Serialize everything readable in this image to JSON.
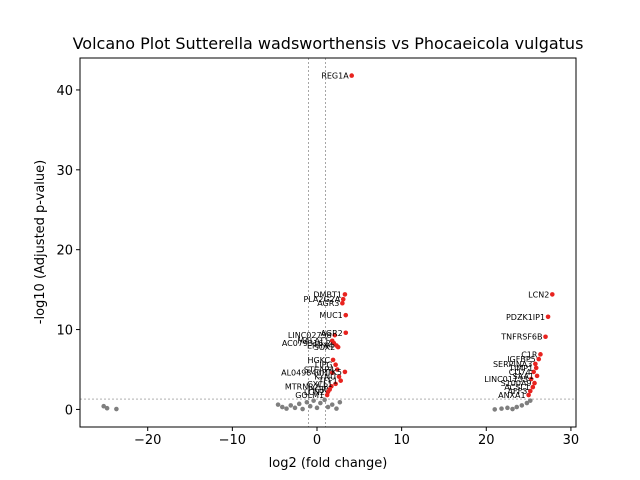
{
  "chart_data": {
    "type": "scatter",
    "title": "Volcano Plot Sutterella wadsworthensis vs Phocaeicola vulgatus",
    "xlabel": "log2 (fold change)",
    "ylabel": "-log10 (Adjusted p-value)",
    "xlim": [
      -28,
      30.6
    ],
    "ylim": [
      -2.2,
      44
    ],
    "xticks": [
      -20,
      -10,
      0,
      10,
      20,
      30
    ],
    "yticks": [
      0,
      10,
      20,
      30,
      40
    ],
    "xtick_labels": [
      "−20",
      "−10",
      "0",
      "10",
      "20",
      "30"
    ],
    "ytick_labels": [
      "0",
      "10",
      "20",
      "30",
      "40"
    ],
    "grid": false,
    "threshold_lines": {
      "fold_change": [
        -1,
        1
      ],
      "adjusted_p": 1.3
    },
    "colors": {
      "significant": "#e8231f",
      "not_significant": "#7f7f7f",
      "threshold": "#808080"
    },
    "series": [
      {
        "color": "#e8231f",
        "points": [
          {
            "x": 4.1,
            "y": 41.8,
            "label": "REG1A"
          },
          {
            "x": 3.3,
            "y": 14.4,
            "label": "DMBT1"
          },
          {
            "x": 3.1,
            "y": 13.8,
            "label": "PLA2G2A"
          },
          {
            "x": 3.0,
            "y": 13.3,
            "label": "AGR3"
          },
          {
            "x": 3.4,
            "y": 11.8,
            "label": "MUC1"
          },
          {
            "x": 3.4,
            "y": 9.6,
            "label": "AGR2"
          },
          {
            "x": 2.1,
            "y": 9.3,
            "label": "LINC02798"
          },
          {
            "x": 1.8,
            "y": 8.6,
            "label": "MALAT1"
          },
          {
            "x": 2.0,
            "y": 8.3,
            "label": "AC079316.2"
          },
          {
            "x": 2.3,
            "y": 8.0,
            "label": "EPHX4"
          },
          {
            "x": 2.5,
            "y": 7.8,
            "label": "SOX2"
          },
          {
            "x": 1.9,
            "y": 6.2,
            "label": "HGKC"
          },
          {
            "x": 2.2,
            "y": 5.6,
            "label": "LIPG"
          },
          {
            "x": 2.4,
            "y": 5.0,
            "label": "STEAP4"
          },
          {
            "x": 3.3,
            "y": 4.7,
            "label": "PTK5"
          },
          {
            "x": 1.8,
            "y": 4.6,
            "label": "AL049840.1"
          },
          {
            "x": 2.6,
            "y": 4.1,
            "label": "KYNU"
          },
          {
            "x": 2.8,
            "y": 3.6,
            "label": "TFF1"
          },
          {
            "x": 2.2,
            "y": 3.2,
            "label": "CXCL1"
          },
          {
            "x": 1.7,
            "y": 2.9,
            "label": "MTRNR2L8"
          },
          {
            "x": 1.5,
            "y": 2.5,
            "label": "PIGR"
          },
          {
            "x": 1.3,
            "y": 2.2,
            "label": "LCN2"
          },
          {
            "x": 1.2,
            "y": 1.8,
            "label": "GOLM1"
          },
          {
            "x": 27.8,
            "y": 14.4,
            "label": "LCN2"
          },
          {
            "x": 27.3,
            "y": 11.6,
            "label": "PDZK1IP1"
          },
          {
            "x": 27.0,
            "y": 9.1,
            "label": "TNFRSF6B"
          },
          {
            "x": 26.4,
            "y": 6.9,
            "label": "C1R"
          },
          {
            "x": 26.2,
            "y": 6.3,
            "label": "IGFBP5"
          },
          {
            "x": 25.8,
            "y": 5.7,
            "label": "SERPINA3"
          },
          {
            "x": 25.9,
            "y": 5.2,
            "label": "TIMP1"
          },
          {
            "x": 25.6,
            "y": 4.7,
            "label": "CD74"
          },
          {
            "x": 26.0,
            "y": 4.2,
            "label": "SAA1"
          },
          {
            "x": 25.3,
            "y": 3.8,
            "label": "LINC01133"
          },
          {
            "x": 25.7,
            "y": 3.3,
            "label": "S100A9"
          },
          {
            "x": 25.5,
            "y": 2.8,
            "label": "ACSL1"
          },
          {
            "x": 25.2,
            "y": 2.3,
            "label": "AFF3"
          },
          {
            "x": 25.0,
            "y": 1.8,
            "label": "ANXA1"
          }
        ]
      },
      {
        "color": "#7f7f7f",
        "points": [
          {
            "x": -25.2,
            "y": 0.4
          },
          {
            "x": -24.8,
            "y": 0.15
          },
          {
            "x": -23.7,
            "y": 0.05
          },
          {
            "x": -4.6,
            "y": 0.6
          },
          {
            "x": -4.1,
            "y": 0.3
          },
          {
            "x": -3.6,
            "y": 0.1
          },
          {
            "x": -3.1,
            "y": 0.5
          },
          {
            "x": -2.6,
            "y": 0.2
          },
          {
            "x": -2.1,
            "y": 0.7
          },
          {
            "x": -1.7,
            "y": 0.05
          },
          {
            "x": -1.2,
            "y": 0.9
          },
          {
            "x": -0.8,
            "y": 0.4
          },
          {
            "x": -0.4,
            "y": 1.1
          },
          {
            "x": 0.0,
            "y": 0.2
          },
          {
            "x": 0.4,
            "y": 0.8
          },
          {
            "x": 0.9,
            "y": 1.2
          },
          {
            "x": 1.3,
            "y": 0.3
          },
          {
            "x": 1.8,
            "y": 0.6
          },
          {
            "x": 2.3,
            "y": 0.1
          },
          {
            "x": 2.7,
            "y": 0.9
          },
          {
            "x": 21.0,
            "y": 0.0
          },
          {
            "x": 21.8,
            "y": 0.1
          },
          {
            "x": 22.5,
            "y": 0.2
          },
          {
            "x": 23.1,
            "y": 0.05
          },
          {
            "x": 23.6,
            "y": 0.3
          },
          {
            "x": 24.2,
            "y": 0.5
          },
          {
            "x": 24.8,
            "y": 0.8
          },
          {
            "x": 25.2,
            "y": 1.1
          }
        ]
      }
    ]
  }
}
